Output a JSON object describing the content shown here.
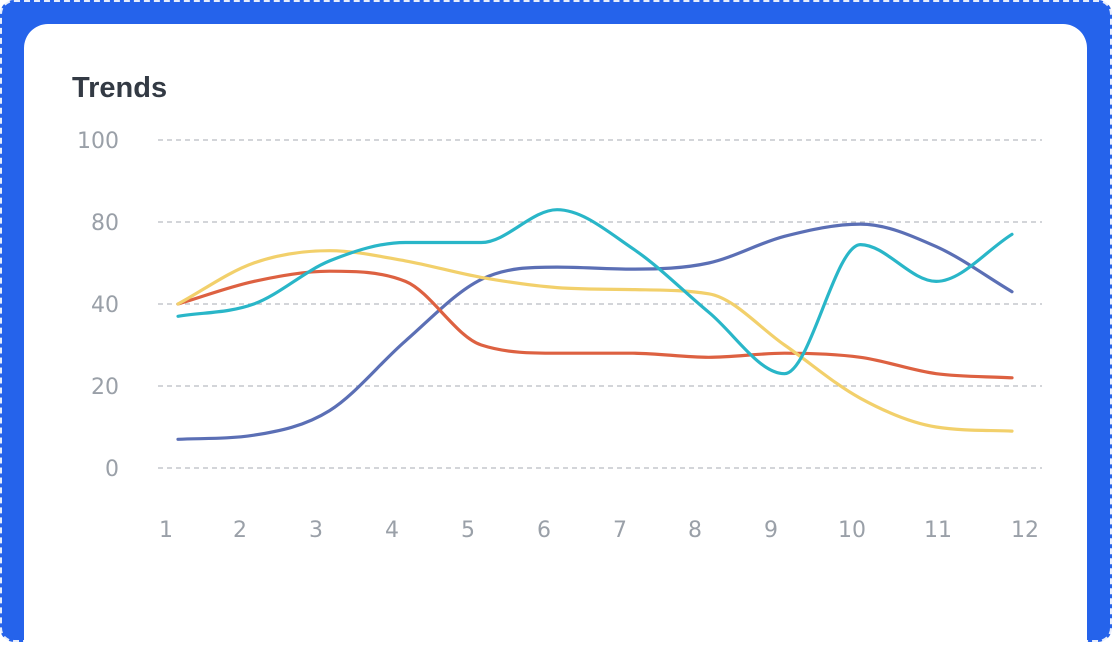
{
  "chart_data": {
    "type": "line",
    "title": "Trends",
    "xlabel": "",
    "ylabel": "",
    "x": [
      1,
      2,
      3,
      4,
      5,
      6,
      7,
      8,
      9,
      10,
      11,
      12
    ],
    "yticks": [
      {
        "label": "100",
        "value": 100
      },
      {
        "label": "80",
        "value": 80
      },
      {
        "label": "40",
        "value": 40
      },
      {
        "label": "20",
        "value": 20
      },
      {
        "label": "0",
        "value": 0
      }
    ],
    "ylim": [
      0,
      100
    ],
    "grid": "horizontal dashed",
    "series": [
      {
        "color": "#5b6fb5",
        "values": [
          7,
          8,
          14,
          31,
          52,
          58,
          57,
          60,
          73,
          79,
          68,
          46
        ]
      },
      {
        "color": "#dd6141",
        "values": [
          40,
          51,
          56,
          51,
          30,
          28,
          28,
          27,
          28,
          27,
          23,
          22
        ]
      },
      {
        "color": "#f2d06b",
        "values": [
          40,
          60,
          66,
          61,
          53,
          48,
          47,
          45,
          30,
          17,
          10,
          9
        ]
      },
      {
        "color": "#29b6c8",
        "values": [
          37,
          40,
          61,
          70,
          70,
          83,
          67,
          38,
          23,
          69,
          51,
          74
        ]
      }
    ]
  }
}
